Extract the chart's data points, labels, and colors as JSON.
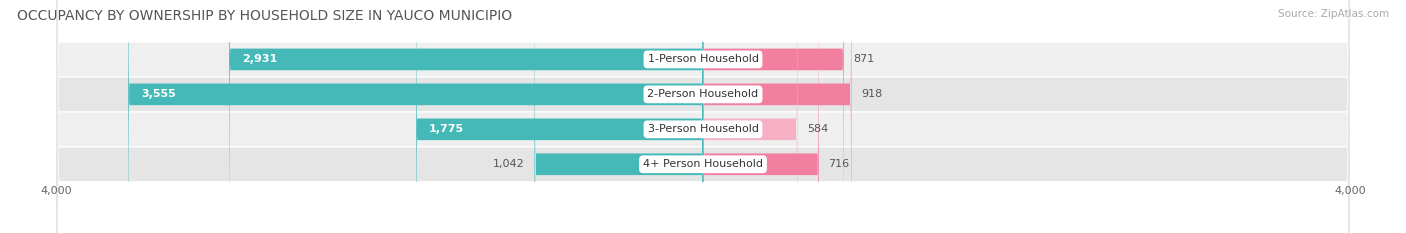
{
  "title": "OCCUPANCY BY OWNERSHIP BY HOUSEHOLD SIZE IN YAUCO MUNICIPIO",
  "source": "Source: ZipAtlas.com",
  "categories": [
    "1-Person Household",
    "2-Person Household",
    "3-Person Household",
    "4+ Person Household"
  ],
  "owner_values": [
    2931,
    3555,
    1775,
    1042
  ],
  "renter_values": [
    871,
    918,
    584,
    716
  ],
  "owner_color": "#45b8b8",
  "renter_color": "#f27fa0",
  "renter_color_light": "#f7afc3",
  "row_bg_color_odd": "#efefef",
  "row_bg_color_even": "#e5e5e5",
  "axis_max": 4000,
  "title_fontsize": 10,
  "source_fontsize": 7.5,
  "label_fontsize": 8,
  "tick_fontsize": 8,
  "legend_fontsize": 8,
  "background_color": "#ffffff"
}
